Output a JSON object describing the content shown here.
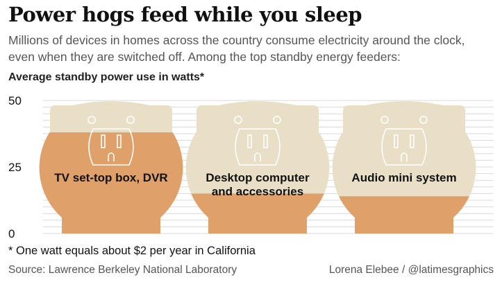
{
  "header": {
    "title": "Power hogs feed while you sleep",
    "subtitle_lines": [
      "Millions of devices in homes across the country consume electricity around the clock,",
      "even when they are switched off. Among the top standby energy feeders:"
    ]
  },
  "chart_data": {
    "type": "bar",
    "ylabel": "Average standby power use in watts*",
    "ylim": [
      0,
      50
    ],
    "yticks": [
      "50",
      "25",
      "0"
    ],
    "categories": [
      "TV set-top box, DVR",
      "Desktop computer and accessories",
      "Audio mini system"
    ],
    "category_lines": [
      [
        "TV set-top box, DVR"
      ],
      [
        "Desktop computer",
        "and accessories"
      ],
      [
        "Audio mini system"
      ]
    ],
    "values": [
      38,
      15,
      14
    ],
    "grid": true,
    "colors": {
      "fill": "#e0a06a",
      "empty": "#e8dfc6",
      "grid": "#d8d8d8",
      "outlet_line": "#ffffff"
    }
  },
  "footnote": "* One watt equals about $2 per year in California",
  "source": "Source: Lawrence Berkeley National Laboratory",
  "credit": "Lorena Elebee  /  @latimesgraphics"
}
